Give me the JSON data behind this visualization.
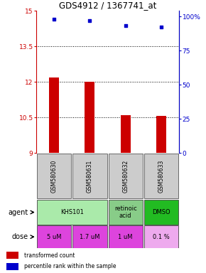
{
  "title": "GDS4912 / 1367741_at",
  "samples": [
    "GSM580630",
    "GSM580631",
    "GSM580632",
    "GSM580633"
  ],
  "bar_values": [
    12.2,
    12.0,
    10.6,
    10.55
  ],
  "scatter_values": [
    98,
    97,
    93,
    92
  ],
  "ylim_left": [
    9,
    15
  ],
  "ylim_right": [
    0,
    100
  ],
  "yticks_left": [
    9,
    10.5,
    12,
    13.5,
    15
  ],
  "yticks_right": [
    0,
    25,
    50,
    75,
    100
  ],
  "ytick_labels_left": [
    "9",
    "10.5",
    "12",
    "13.5",
    "15"
  ],
  "ytick_labels_right": [
    "0",
    "25",
    "50",
    "75",
    "100%"
  ],
  "bar_color": "#cc0000",
  "scatter_color": "#0000cc",
  "bar_bottom": 9,
  "hline_values": [
    10.5,
    12.0,
    13.5
  ],
  "left_label_color": "#cc0000",
  "right_label_color": "#0000cc",
  "sample_box_color": "#cccccc",
  "sample_box_edge": "#555555",
  "agent_spans": [
    [
      0,
      1,
      "KHS101",
      "#aaeaaa"
    ],
    [
      2,
      2,
      "retinoic\nacid",
      "#88cc88"
    ],
    [
      3,
      3,
      "DMSO",
      "#22bb22"
    ]
  ],
  "dose_data": [
    [
      "5 uM",
      "#dd44dd"
    ],
    [
      "1.7 uM",
      "#dd44dd"
    ],
    [
      "1 uM",
      "#dd44dd"
    ],
    [
      "0.1 %",
      "#eeaaee"
    ]
  ],
  "legend_bar_label": "transformed count",
  "legend_scatter_label": "percentile rank within the sample"
}
